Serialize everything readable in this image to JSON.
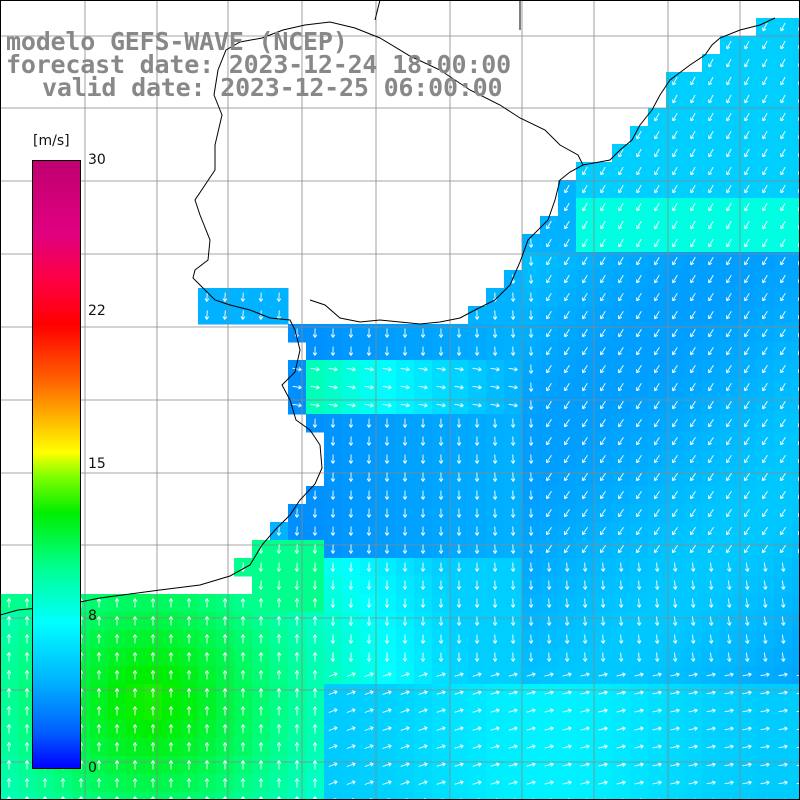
{
  "title": {
    "model": "modelo GEFS-WAVE (NCEP)",
    "forecast": "forecast date: 2023-12-24 18:00:00",
    "valid": "valid date: 2023-12-25 06:00:00"
  },
  "colorbar": {
    "unit": "[m/s]",
    "ticks": [
      "30",
      "22",
      "15",
      "8",
      "0"
    ],
    "tick_values": [
      30,
      22,
      15,
      8,
      0
    ],
    "range": [
      0,
      30
    ],
    "colors": [
      "#0000ff",
      "#00b0ff",
      "#00ffff",
      "#00ee00",
      "#ffff00",
      "#ff6000",
      "#ff0000",
      "#c00070"
    ]
  },
  "map": {
    "land_color": "#ffffff",
    "coastline_color": "#000000",
    "grid_color": "#888888",
    "vector_color": "#ffffff",
    "region": "South America south-east coast / South Atlantic"
  }
}
